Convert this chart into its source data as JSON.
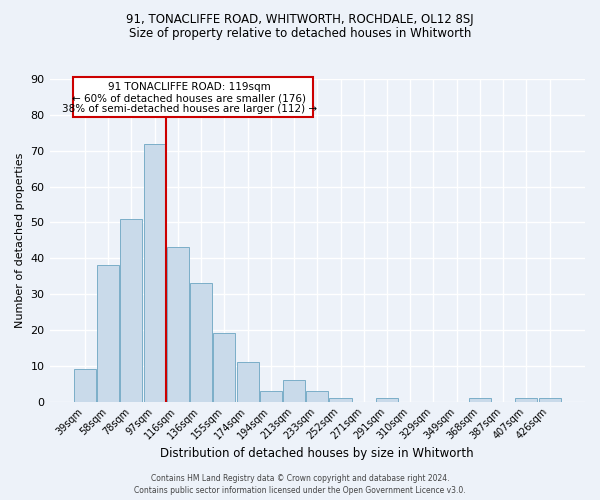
{
  "title": "91, TONACLIFFE ROAD, WHITWORTH, ROCHDALE, OL12 8SJ",
  "subtitle": "Size of property relative to detached houses in Whitworth",
  "xlabel": "Distribution of detached houses by size in Whitworth",
  "ylabel": "Number of detached properties",
  "bar_labels": [
    "39sqm",
    "58sqm",
    "78sqm",
    "97sqm",
    "116sqm",
    "136sqm",
    "155sqm",
    "174sqm",
    "194sqm",
    "213sqm",
    "233sqm",
    "252sqm",
    "271sqm",
    "291sqm",
    "310sqm",
    "329sqm",
    "349sqm",
    "368sqm",
    "387sqm",
    "407sqm",
    "426sqm"
  ],
  "bar_values": [
    9,
    38,
    51,
    72,
    43,
    33,
    19,
    11,
    3,
    6,
    3,
    1,
    0,
    1,
    0,
    0,
    0,
    1,
    0,
    1,
    1
  ],
  "bar_color": "#c9daea",
  "bar_edge_color": "#7baec8",
  "property_line_index": 4,
  "property_line_color": "#cc0000",
  "annotation_text_line1": "91 TONACLIFFE ROAD: 119sqm",
  "annotation_text_line2": "← 60% of detached houses are smaller (176)",
  "annotation_text_line3": "38% of semi-detached houses are larger (112) →",
  "annotation_box_color": "#cc0000",
  "annotation_bg": "white",
  "ylim": [
    0,
    90
  ],
  "yticks": [
    0,
    10,
    20,
    30,
    40,
    50,
    60,
    70,
    80,
    90
  ],
  "footer_text": "Contains HM Land Registry data © Crown copyright and database right 2024.\nContains public sector information licensed under the Open Government Licence v3.0.",
  "bg_color": "#edf2f9",
  "grid_color": "white",
  "title_fontsize": 8.5,
  "subtitle_fontsize": 8.5
}
